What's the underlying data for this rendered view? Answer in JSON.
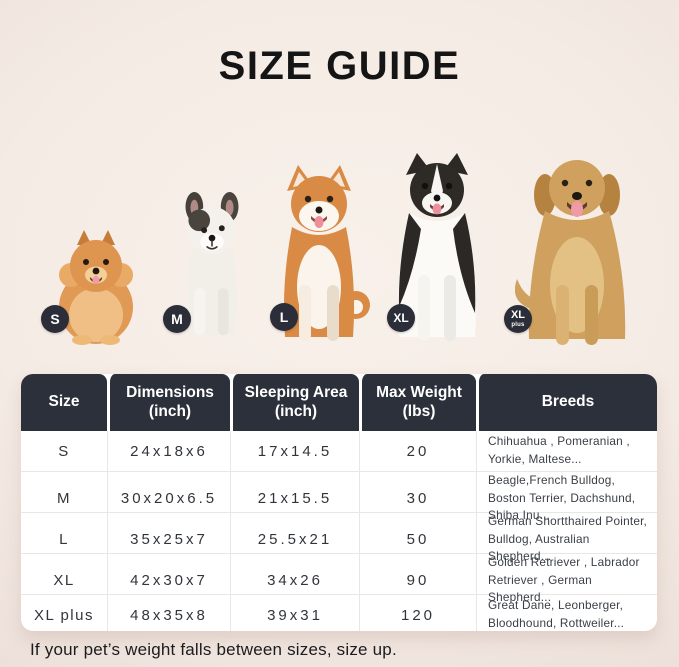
{
  "title": "SIZE GUIDE",
  "note": "If your pet’s weight falls between sizes, size up.",
  "colors": {
    "background": "#f4ebe4",
    "header_bg": "#2b303b",
    "badge_bg": "#2b2e38",
    "card_bg": "#ffffff"
  },
  "dogs": [
    {
      "label": "S",
      "breed": "pomeranian"
    },
    {
      "label": "M",
      "breed": "french-bulldog"
    },
    {
      "label": "L",
      "breed": "shiba-inu"
    },
    {
      "label": "XL",
      "breed": "border-collie"
    },
    {
      "label": "XL",
      "sub": "plus",
      "breed": "golden-retriever"
    }
  ],
  "table": {
    "headers": [
      {
        "line1": "Size",
        "line2": ""
      },
      {
        "line1": "Dimensions",
        "line2": "(inch)"
      },
      {
        "line1": "Sleeping Area",
        "line2": "(inch)"
      },
      {
        "line1": "Max Weight",
        "line2": "(lbs)"
      },
      {
        "line1": "Breeds",
        "line2": ""
      }
    ],
    "rows": [
      {
        "size": "S",
        "dimensions": "24x18x6",
        "sleeping_area": "17x14.5",
        "max_weight": "20",
        "breeds": "Chihuahua , Pomeranian , Yorkie, Maltese..."
      },
      {
        "size": "M",
        "dimensions": "30x20x6.5",
        "sleeping_area": "21x15.5",
        "max_weight": "30",
        "breeds": "Beagle,French Bulldog, Boston Terrier, Dachshund, Shiba Inu..."
      },
      {
        "size": "L",
        "dimensions": "35x25x7",
        "sleeping_area": "25.5x21",
        "max_weight": "50",
        "breeds": "German Shortthaired Pointer, Bulldog, Australian Shepherd..."
      },
      {
        "size": "XL",
        "dimensions": "42x30x7",
        "sleeping_area": "34x26",
        "max_weight": "90",
        "breeds": "Golden Retriever , Labrador Retriever , German Shepherd..."
      },
      {
        "size": "XL plus",
        "dimensions": "48x35x8",
        "sleeping_area": "39x31",
        "max_weight": "120",
        "breeds": "Great Dane, Leonberger, Bloodhound, Rottweiler..."
      }
    ]
  }
}
